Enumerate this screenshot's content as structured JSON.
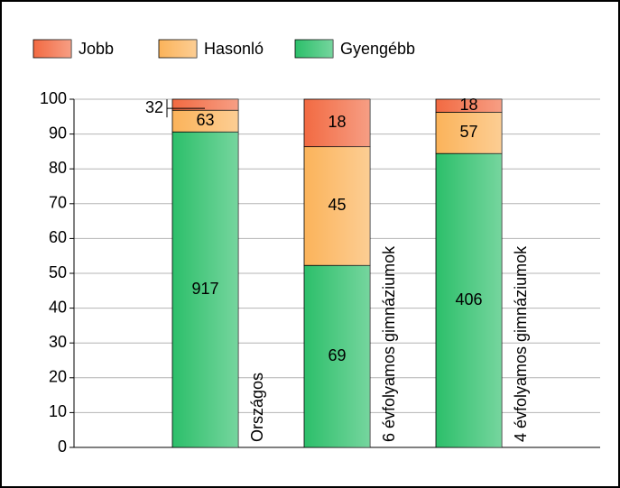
{
  "chart_data": {
    "type": "bar",
    "stacking": "percent",
    "categories": [
      "Országos",
      "6 évfolyamos gimnáziumok",
      "4 évfolyamos gimnáziumok"
    ],
    "series": [
      {
        "name": "Gyengébb",
        "color": "#2cbf6a",
        "values": [
          917,
          69,
          406
        ]
      },
      {
        "name": "Hasonló",
        "color": "#fbb35a",
        "values": [
          63,
          45,
          57
        ]
      },
      {
        "name": "Jobb",
        "color": "#f26a42",
        "values": [
          32,
          18,
          18
        ]
      }
    ],
    "legend_order": [
      2,
      1,
      0
    ],
    "ylim": [
      0,
      100
    ],
    "yticks": [
      0,
      10,
      20,
      30,
      40,
      50,
      60,
      70,
      80,
      90,
      100
    ],
    "grid": true
  }
}
